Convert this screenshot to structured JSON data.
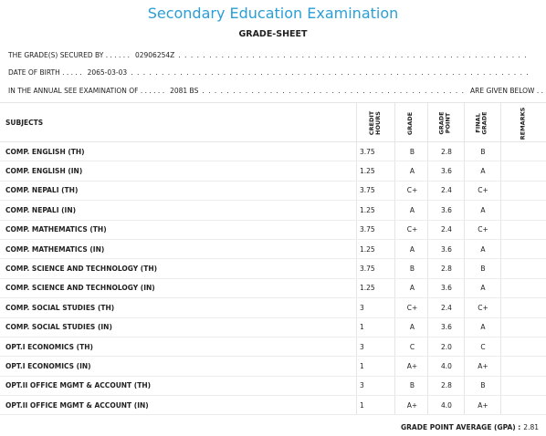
{
  "header": {
    "title": "Secondary Education Examination",
    "subtitle": "GRADE-SHEET"
  },
  "info": {
    "symbol_label": "THE GRADE(S) SECURED BY . . . . . .",
    "symbol_value": "02906254Z",
    "symbol_dots": ". . . . . . . . . . . . . . . . . . . . . . . . . . . . . . . . . . . . . . . . . . . . . . . . . . . . . . . . .",
    "dob_label": "DATE OF BIRTH . . . . .",
    "dob_value": "2065-03-03",
    "dob_dots": ". . . . . . . . . . . . . . . . . . . . . . . . . . . . . . . . . . . . . . . . . . . . . . . . . . . . . . . . . . . . . . . . .",
    "exam_label": "IN THE ANNUAL SEE EXAMINATION OF . . . . . .",
    "exam_value": "2081 BS",
    "exam_dots": ". . . . . . . . . . . . . . . . . . . . . . . . . . . . . . . . . . . . . . . . . . .",
    "exam_suffix": "ARE GIVEN BELOW . . ."
  },
  "table": {
    "columns": {
      "subjects": "SUBJECTS",
      "credit_hours": "CREDIT\nHOURS",
      "grade": "GRADE",
      "grade_point": "GRADE\nPOINT",
      "final_grade": "FINAL\nGRADE",
      "remarks": "REMARKS"
    },
    "rows": [
      {
        "subject": "COMP. ENGLISH (TH)",
        "ch": "3.75",
        "grade": "B",
        "gp": "2.8",
        "fg": "B"
      },
      {
        "subject": "COMP. ENGLISH (IN)",
        "ch": "1.25",
        "grade": "A",
        "gp": "3.6",
        "fg": "A"
      },
      {
        "subject": "COMP. NEPALI (TH)",
        "ch": "3.75",
        "grade": "C+",
        "gp": "2.4",
        "fg": "C+"
      },
      {
        "subject": "COMP. NEPALI (IN)",
        "ch": "1.25",
        "grade": "A",
        "gp": "3.6",
        "fg": "A"
      },
      {
        "subject": "COMP. MATHEMATICS (TH)",
        "ch": "3.75",
        "grade": "C+",
        "gp": "2.4",
        "fg": "C+"
      },
      {
        "subject": "COMP. MATHEMATICS (IN)",
        "ch": "1.25",
        "grade": "A",
        "gp": "3.6",
        "fg": "A"
      },
      {
        "subject": "COMP. SCIENCE AND TECHNOLOGY (TH)",
        "ch": "3.75",
        "grade": "B",
        "gp": "2.8",
        "fg": "B"
      },
      {
        "subject": "COMP. SCIENCE AND TECHNOLOGY (IN)",
        "ch": "1.25",
        "grade": "A",
        "gp": "3.6",
        "fg": "A"
      },
      {
        "subject": "COMP. SOCIAL STUDIES (TH)",
        "ch": "3",
        "grade": "C+",
        "gp": "2.4",
        "fg": "C+"
      },
      {
        "subject": "COMP. SOCIAL STUDIES (IN)",
        "ch": "1",
        "grade": "A",
        "gp": "3.6",
        "fg": "A"
      },
      {
        "subject": "OPT.I ECONOMICS (TH)",
        "ch": "3",
        "grade": "C",
        "gp": "2.0",
        "fg": "C"
      },
      {
        "subject": "OPT.I ECONOMICS (IN)",
        "ch": "1",
        "grade": "A+",
        "gp": "4.0",
        "fg": "A+"
      },
      {
        "subject": "OPT.II OFFICE MGMT & ACCOUNT (TH)",
        "ch": "3",
        "grade": "B",
        "gp": "2.8",
        "fg": "B"
      },
      {
        "subject": "OPT.II OFFICE MGMT & ACCOUNT (IN)",
        "ch": "1",
        "grade": "A+",
        "gp": "4.0",
        "fg": "A+"
      }
    ]
  },
  "gpa": {
    "label": "GRADE POINT AVERAGE (GPA) :",
    "value": "2.81"
  }
}
